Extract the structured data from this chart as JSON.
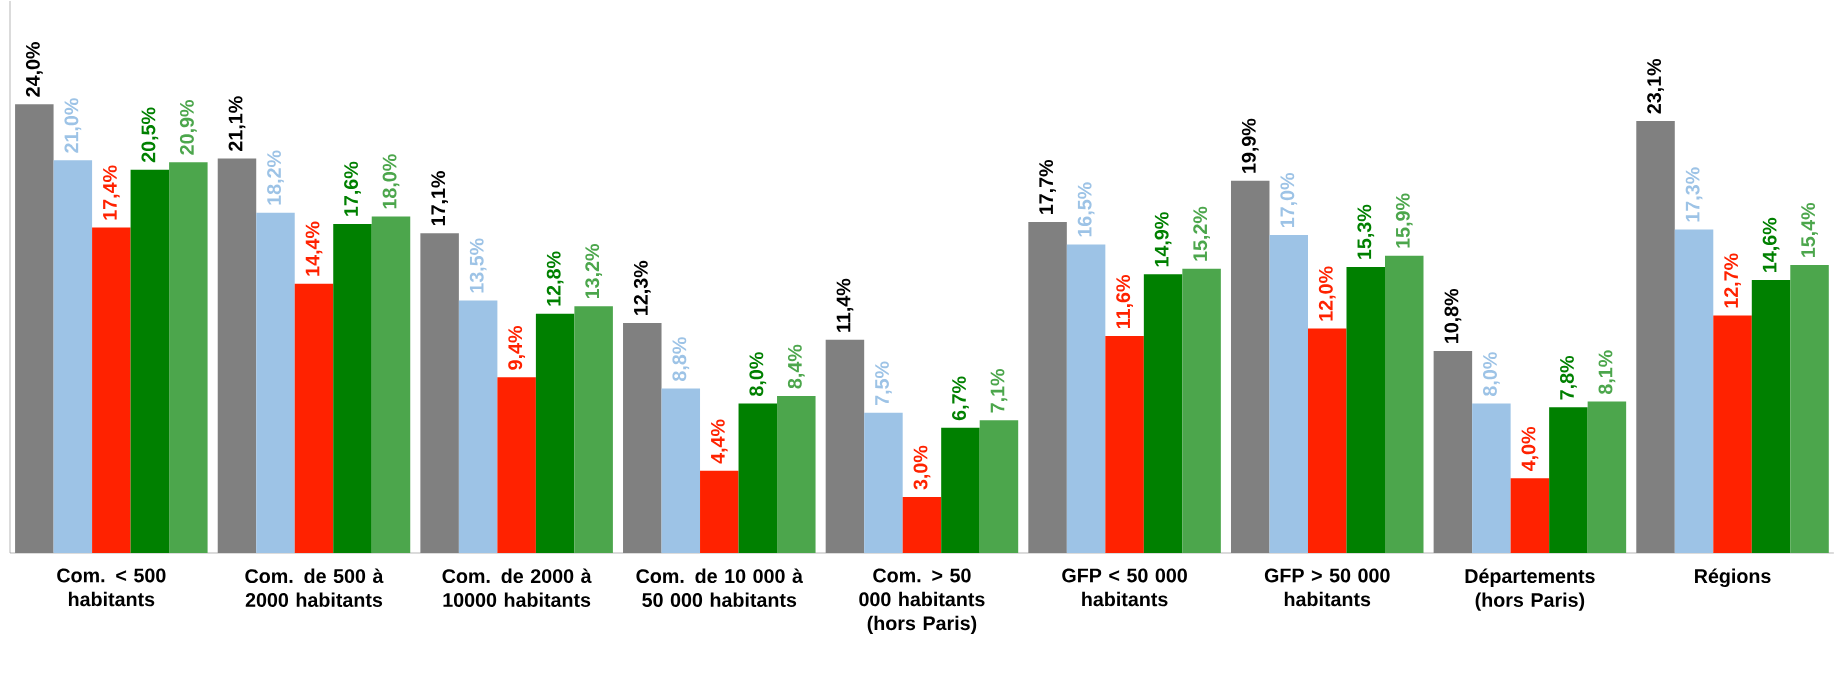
{
  "chart_data": {
    "type": "bar",
    "categories": [
      "Com. < 500 habitants",
      "Com. de 500 à 2000 habitants",
      "Com. de 2000 à 10000 habitants",
      "Com. de 10 000 à 50 000 habitants",
      "Com.  > 50 000 habitants (hors Paris)",
      "GFP < 50 000 habitants",
      "GFP > 50 000 habitants",
      "Départements (hors Paris)",
      "Régions"
    ],
    "series": [
      {
        "color": "#808080",
        "values": [
          24.0,
          21.1,
          17.1,
          12.3,
          11.4,
          17.7,
          19.9,
          10.8,
          23.1
        ],
        "value_labels": [
          "24,0%",
          "21,1%",
          "17,1%",
          "12,3%",
          "11,4%",
          "17,7%",
          "19,9%",
          "10,8%",
          "23,1%"
        ]
      },
      {
        "color": "#9dc3e6",
        "values": [
          21.0,
          18.2,
          13.5,
          8.8,
          7.5,
          16.5,
          17.0,
          8.0,
          17.3
        ],
        "value_labels": [
          "21,0%",
          "18,2%",
          "13,5%",
          "8,8%",
          "7,5%",
          "16,5%",
          "17,0%",
          "8,0%",
          "17,3%"
        ]
      },
      {
        "color": "#ff2200",
        "values": [
          17.4,
          14.4,
          9.4,
          4.4,
          3.0,
          11.6,
          12.0,
          4.0,
          12.7
        ],
        "value_labels": [
          "17,4%",
          "14,4%",
          "9,4%",
          "4,4%",
          "3,0%",
          "11,6%",
          "12,0%",
          "4,0%",
          "12,7%"
        ]
      },
      {
        "color": "#008000",
        "values": [
          20.5,
          17.6,
          12.8,
          8.0,
          6.7,
          14.9,
          15.3,
          7.8,
          14.6
        ],
        "value_labels": [
          "20,5%",
          "17,6%",
          "12,8%",
          "8,0%",
          "6,7%",
          "14,9%",
          "15,3%",
          "7,8%",
          "14,6%"
        ]
      },
      {
        "color": "#4ca64c",
        "values": [
          20.9,
          18.0,
          13.2,
          8.4,
          7.1,
          15.2,
          15.9,
          8.1,
          15.4
        ],
        "value_labels": [
          "20,9%",
          "18,0%",
          "13,2%",
          "8,4%",
          "7,1%",
          "15,2%",
          "15,9%",
          "8,1%",
          "15,4%"
        ]
      }
    ],
    "grid": false,
    "tick_labels": "x"
  }
}
